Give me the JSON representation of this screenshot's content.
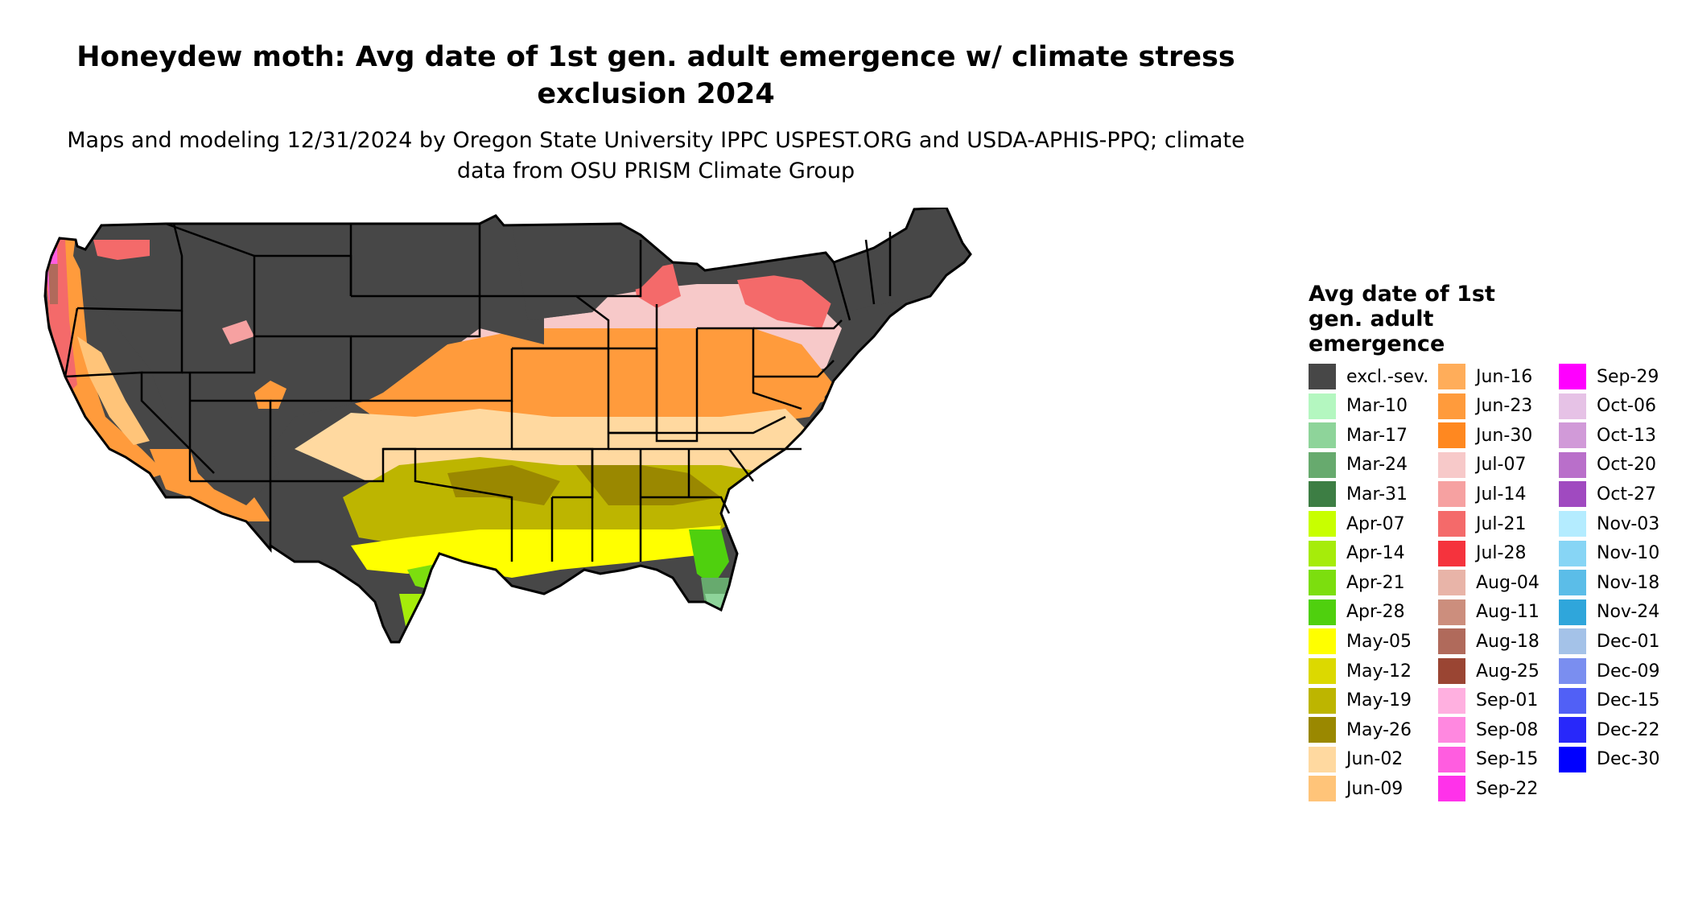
{
  "title": "Honeydew moth: Avg date of 1st gen. adult emergence w/ climate stress exclusion 2024",
  "subtitle": "Maps and modeling 12/31/2024 by Oregon State University IPPC USPEST.ORG and USDA-APHIS-PPQ; climate data from OSU PRISM Climate Group",
  "legend": {
    "title": "Avg date of 1st gen. adult emergence",
    "items": [
      {
        "label": "excl.-sev.",
        "color": "#474747"
      },
      {
        "label": "Mar-10",
        "color": "#b4f7c0"
      },
      {
        "label": "Mar-17",
        "color": "#8ed49a"
      },
      {
        "label": "Mar-24",
        "color": "#67aa6e"
      },
      {
        "label": "Mar-31",
        "color": "#3d7e44"
      },
      {
        "label": "Apr-07",
        "color": "#c8ff00"
      },
      {
        "label": "Apr-14",
        "color": "#a6ec0a"
      },
      {
        "label": "Apr-21",
        "color": "#7cde0e"
      },
      {
        "label": "Apr-28",
        "color": "#4fd00e"
      },
      {
        "label": "May-05",
        "color": "#ffff00"
      },
      {
        "label": "May-12",
        "color": "#dcd900"
      },
      {
        "label": "May-19",
        "color": "#bdb500"
      },
      {
        "label": "May-26",
        "color": "#9a8800"
      },
      {
        "label": "Jun-02",
        "color": "#ffd9a0"
      },
      {
        "label": "Jun-09",
        "color": "#ffc479"
      },
      {
        "label": "Jun-16",
        "color": "#ffad5a"
      },
      {
        "label": "Jun-23",
        "color": "#ff9b3c"
      },
      {
        "label": "Jun-30",
        "color": "#ff8820"
      },
      {
        "label": "Jul-07",
        "color": "#f7c9c9"
      },
      {
        "label": "Jul-14",
        "color": "#f6a1a1"
      },
      {
        "label": "Jul-21",
        "color": "#f46a6a"
      },
      {
        "label": "Jul-28",
        "color": "#f5333d"
      },
      {
        "label": "Aug-04",
        "color": "#e8b4a8"
      },
      {
        "label": "Aug-11",
        "color": "#cc8e7d"
      },
      {
        "label": "Aug-18",
        "color": "#b06a5b"
      },
      {
        "label": "Aug-25",
        "color": "#9a4533"
      },
      {
        "label": "Sep-01",
        "color": "#ffb0e0"
      },
      {
        "label": "Sep-08",
        "color": "#ff88e0"
      },
      {
        "label": "Sep-15",
        "color": "#ff5de0"
      },
      {
        "label": "Sep-22",
        "color": "#ff32ea"
      },
      {
        "label": "Sep-29",
        "color": "#ff00ff"
      },
      {
        "label": "Oct-06",
        "color": "#e6c2e6"
      },
      {
        "label": "Oct-13",
        "color": "#d19ad8"
      },
      {
        "label": "Oct-20",
        "color": "#b96fca"
      },
      {
        "label": "Oct-27",
        "color": "#a04ac0"
      },
      {
        "label": "Nov-03",
        "color": "#b4ecff"
      },
      {
        "label": "Nov-10",
        "color": "#87d5f5"
      },
      {
        "label": "Nov-18",
        "color": "#5bbde8"
      },
      {
        "label": "Nov-24",
        "color": "#2fa6db"
      },
      {
        "label": "Dec-01",
        "color": "#a4c2e8"
      },
      {
        "label": "Dec-09",
        "color": "#7a8ef0"
      },
      {
        "label": "Dec-15",
        "color": "#5160f6"
      },
      {
        "label": "Dec-22",
        "color": "#2828fa"
      },
      {
        "label": "Dec-30",
        "color": "#0000ff"
      }
    ]
  },
  "map": {
    "region": "contiguous-united-states",
    "excluded_color": "#474747",
    "border_color": "#000000"
  }
}
